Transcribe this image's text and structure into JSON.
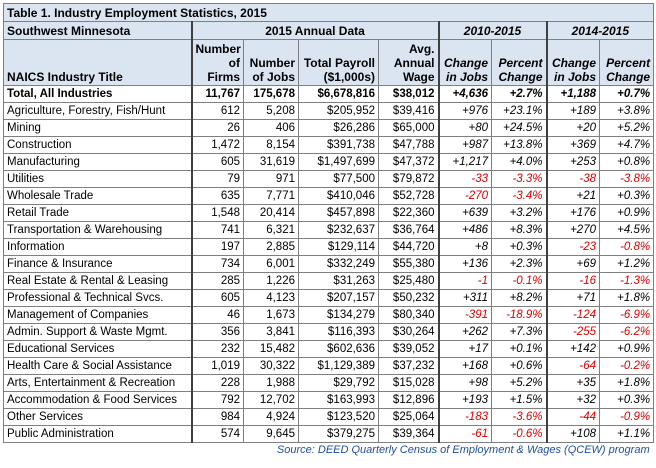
{
  "table_title": "Table 1. Industry Employment Statistics, 2015",
  "header_groups": {
    "region": "Southwest Minnesota",
    "annual": "2015 Annual Data",
    "p1": "2010-2015",
    "p2": "2014-2015"
  },
  "columns": [
    "NAICS Industry Title",
    "Number of Firms",
    "Number of Jobs",
    "Total Payroll ($1,000s)",
    "Avg. Annual Wage",
    "Change in Jobs",
    "Percent Change",
    "Change in Jobs",
    "Percent Change"
  ],
  "rows": [
    [
      "Total, All Industries",
      "11,767",
      "175,678",
      "$6,678,816",
      "$38,012",
      "+4,636",
      "+2.7%",
      "+1,188",
      "+0.7%"
    ],
    [
      "Agriculture, Forestry, Fish/Hunt",
      "612",
      "5,208",
      "$205,952",
      "$39,416",
      "+976",
      "+23.1%",
      "+189",
      "+3.8%"
    ],
    [
      "Mining",
      "26",
      "406",
      "$26,286",
      "$65,000",
      "+80",
      "+24.5%",
      "+20",
      "+5.2%"
    ],
    [
      "Construction",
      "1,472",
      "8,154",
      "$391,738",
      "$47,788",
      "+987",
      "+13.8%",
      "+369",
      "+4.7%"
    ],
    [
      "Manufacturing",
      "605",
      "31,619",
      "$1,497,699",
      "$47,372",
      "+1,217",
      "+4.0%",
      "+253",
      "+0.8%"
    ],
    [
      "Utilities",
      "79",
      "971",
      "$77,500",
      "$79,872",
      "-33",
      "-3.3%",
      "-38",
      "-3.8%"
    ],
    [
      "Wholesale Trade",
      "635",
      "7,771",
      "$410,046",
      "$52,728",
      "-270",
      "-3.4%",
      "+21",
      "+0.3%"
    ],
    [
      "Retail Trade",
      "1,548",
      "20,414",
      "$457,898",
      "$22,360",
      "+639",
      "+3.2%",
      "+176",
      "+0.9%"
    ],
    [
      "Transportation & Warehousing",
      "741",
      "6,321",
      "$232,637",
      "$36,764",
      "+486",
      "+8.3%",
      "+270",
      "+4.5%"
    ],
    [
      "Information",
      "197",
      "2,885",
      "$129,114",
      "$44,720",
      "+8",
      "+0.3%",
      "-23",
      "-0.8%"
    ],
    [
      "Finance & Insurance",
      "734",
      "6,001",
      "$332,249",
      "$55,380",
      "+136",
      "+2.3%",
      "+69",
      "+1.2%"
    ],
    [
      "Real Estate & Rental & Leasing",
      "285",
      "1,226",
      "$31,263",
      "$25,480",
      "-1",
      "-0.1%",
      "-16",
      "-1.3%"
    ],
    [
      "Professional & Technical Svcs.",
      "605",
      "4,123",
      "$207,157",
      "$50,232",
      "+311",
      "+8.2%",
      "+71",
      "+1.8%"
    ],
    [
      "Management of Companies",
      "46",
      "1,673",
      "$134,279",
      "$80,340",
      "-391",
      "-18.9%",
      "-124",
      "-6.9%"
    ],
    [
      "Admin. Support & Waste Mgmt.",
      "356",
      "3,841",
      "$116,393",
      "$30,264",
      "+262",
      "+7.3%",
      "-255",
      "-6.2%"
    ],
    [
      "Educational Services",
      "232",
      "15,482",
      "$602,636",
      "$39,052",
      "+17",
      "+0.1%",
      "+142",
      "+0.9%"
    ],
    [
      "Health Care & Social Assistance",
      "1,019",
      "30,322",
      "$1,129,389",
      "$37,232",
      "+168",
      "+0.6%",
      "-64",
      "-0.2%"
    ],
    [
      "Arts, Entertainment & Recreation",
      "228",
      "1,988",
      "$29,792",
      "$15,028",
      "+98",
      "+5.2%",
      "+35",
      "+1.8%"
    ],
    [
      "Accommodation & Food Services",
      "792",
      "12,702",
      "$163,993",
      "$12,896",
      "+193",
      "+1.5%",
      "+32",
      "+0.3%"
    ],
    [
      "Other Services",
      "984",
      "4,924",
      "$123,520",
      "$25,064",
      "-183",
      "-3.6%",
      "-44",
      "-0.9%"
    ],
    [
      "Public Administration",
      "574",
      "9,645",
      "$379,275",
      "$39,364",
      "-61",
      "-0.6%",
      "+108",
      "+1.1%"
    ]
  ],
  "source": "Source: DEED Quarterly Census of Employment & Wages (QCEW) program",
  "colors": {
    "header_bg": "#dbe5f1",
    "negative": "#e00000",
    "source": "#1f4e9e"
  }
}
